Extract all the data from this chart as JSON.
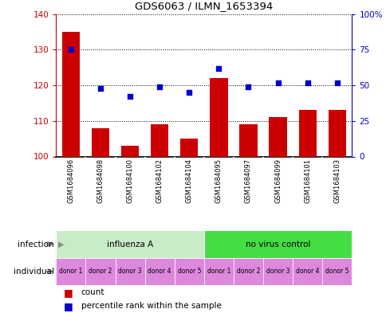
{
  "title": "GDS6063 / ILMN_1653394",
  "samples": [
    "GSM1684096",
    "GSM1684098",
    "GSM1684100",
    "GSM1684102",
    "GSM1684104",
    "GSM1684095",
    "GSM1684097",
    "GSM1684099",
    "GSM1684101",
    "GSM1684103"
  ],
  "bar_values": [
    135,
    108,
    103,
    109,
    105,
    122,
    109,
    111,
    113,
    113
  ],
  "dot_values": [
    75,
    48,
    42,
    49,
    45,
    62,
    49,
    52,
    52,
    52
  ],
  "ylim_left": [
    100,
    140
  ],
  "ylim_right": [
    0,
    100
  ],
  "yticks_left": [
    100,
    110,
    120,
    130,
    140
  ],
  "yticks_right": [
    0,
    25,
    50,
    75,
    100
  ],
  "ytick_labels_left": [
    "100",
    "110",
    "120",
    "130",
    "140"
  ],
  "ytick_labels_right": [
    "0",
    "25",
    "50",
    "75",
    "100%"
  ],
  "bar_color": "#cc0000",
  "dot_color": "#0000cc",
  "infection_groups": [
    {
      "label": "influenza A",
      "start": 0,
      "end": 5,
      "color": "#c8ecc8"
    },
    {
      "label": "no virus control",
      "start": 5,
      "end": 10,
      "color": "#44dd44"
    }
  ],
  "individual_labels": [
    "donor 1",
    "donor 2",
    "donor 3",
    "donor 4",
    "donor 5",
    "donor 1",
    "donor 2",
    "donor 3",
    "donor 4",
    "donor 5"
  ],
  "individual_color": "#dd88dd",
  "sample_bg_color": "#cccccc",
  "infection_row_label": "infection",
  "individual_row_label": "individual",
  "legend_count_label": "count",
  "legend_pct_label": "percentile rank within the sample",
  "background_color": "#ffffff"
}
